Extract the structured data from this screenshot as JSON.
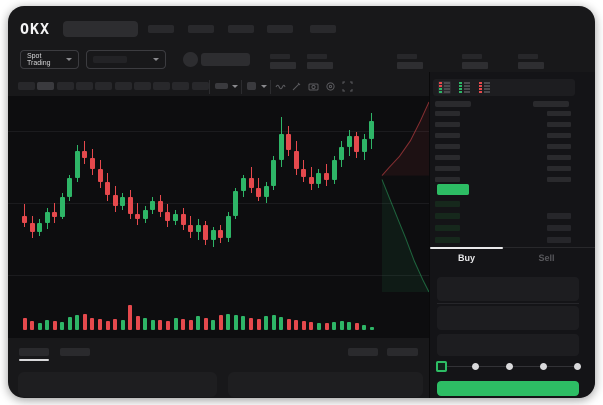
{
  "app": {
    "name_logo": "OKX"
  },
  "colors": {
    "green": "#2eb567",
    "red": "#e5494d",
    "bright_green": "#2dbd64",
    "bid_tint": "#16281c",
    "greek_bar": "#2a2a2d",
    "greek_bar_light": "#3a3a3e"
  },
  "header": {
    "nav_item_count": 5,
    "search_value": ""
  },
  "market_bar": {
    "market_selector_label": "Spot Trading",
    "stat_count": 5
  },
  "chart_toolbar": {
    "timeframe_count": 10,
    "active_timeframe_index": 1,
    "icons": [
      "wave-icon",
      "pencil-icon",
      "camera-icon",
      "gear-icon",
      "expand-icon"
    ]
  },
  "chart_data": {
    "type": "candlestick",
    "note": "UI is greeked: no axis labels, tick values or prices are visible; OHLC values are normalized 0-100 estimates read from candle pixel positions",
    "ylim": [
      0,
      100
    ],
    "grid": true,
    "candles": [
      [
        40,
        46,
        34,
        36
      ],
      [
        36,
        40,
        28,
        31
      ],
      [
        31,
        38,
        29,
        36
      ],
      [
        36,
        44,
        33,
        42
      ],
      [
        42,
        47,
        36,
        39
      ],
      [
        39,
        52,
        38,
        50
      ],
      [
        50,
        62,
        48,
        60
      ],
      [
        60,
        78,
        58,
        75
      ],
      [
        75,
        80,
        68,
        71
      ],
      [
        71,
        76,
        62,
        65
      ],
      [
        65,
        70,
        55,
        58
      ],
      [
        58,
        63,
        48,
        51
      ],
      [
        51,
        56,
        42,
        45
      ],
      [
        45,
        52,
        43,
        50
      ],
      [
        50,
        54,
        38,
        41
      ],
      [
        41,
        47,
        35,
        38
      ],
      [
        38,
        45,
        36,
        43
      ],
      [
        43,
        50,
        41,
        48
      ],
      [
        48,
        51,
        39,
        42
      ],
      [
        42,
        46,
        34,
        37
      ],
      [
        37,
        43,
        35,
        41
      ],
      [
        41,
        44,
        32,
        35
      ],
      [
        35,
        40,
        28,
        31
      ],
      [
        31,
        38,
        27,
        35
      ],
      [
        35,
        37,
        24,
        27
      ],
      [
        27,
        34,
        23,
        32
      ],
      [
        32,
        35,
        25,
        28
      ],
      [
        28,
        42,
        26,
        40
      ],
      [
        40,
        55,
        38,
        53
      ],
      [
        53,
        62,
        50,
        60
      ],
      [
        60,
        66,
        52,
        55
      ],
      [
        55,
        60,
        48,
        50
      ],
      [
        50,
        58,
        47,
        56
      ],
      [
        56,
        72,
        54,
        70
      ],
      [
        70,
        93,
        66,
        84
      ],
      [
        84,
        88,
        72,
        75
      ],
      [
        75,
        80,
        62,
        65
      ],
      [
        65,
        70,
        58,
        61
      ],
      [
        61,
        66,
        54,
        57
      ],
      [
        57,
        65,
        55,
        63
      ],
      [
        63,
        68,
        56,
        59
      ],
      [
        59,
        72,
        57,
        70
      ],
      [
        70,
        80,
        66,
        77
      ],
      [
        77,
        86,
        72,
        83
      ],
      [
        83,
        85,
        71,
        74
      ],
      [
        74,
        84,
        70,
        81
      ],
      [
        81,
        95,
        76,
        91
      ]
    ],
    "volume": [
      45,
      35,
      28,
      40,
      33,
      30,
      50,
      58,
      62,
      48,
      42,
      36,
      44,
      40,
      98,
      52,
      46,
      40,
      38,
      34,
      46,
      42,
      38,
      52,
      46,
      40,
      56,
      62,
      58,
      52,
      48,
      44,
      52,
      58,
      50,
      44,
      38,
      34,
      30,
      28,
      26,
      32,
      36,
      32,
      26,
      20,
      12
    ],
    "depth": {
      "asks_line": [
        [
          1,
          0.02
        ],
        [
          0.82,
          0.12
        ],
        [
          0.62,
          0.22
        ],
        [
          0.4,
          0.3
        ],
        [
          0.18,
          0.36
        ],
        [
          0.04,
          0.4
        ]
      ],
      "bids_line": [
        [
          0.04,
          0.42
        ],
        [
          0.2,
          0.52
        ],
        [
          0.36,
          0.62
        ],
        [
          0.52,
          0.72
        ],
        [
          0.7,
          0.84
        ],
        [
          0.88,
          0.94
        ],
        [
          1,
          1
        ]
      ]
    }
  },
  "orderbook": {
    "view_toggles": [
      "combined-book",
      "bids-only",
      "asks-only"
    ],
    "ask_row_count": 7,
    "bid_row_count": 4
  },
  "trade_panel": {
    "tabs": [
      {
        "label": "Buy"
      },
      {
        "label": "Sell"
      }
    ],
    "active_tab": "Buy",
    "slider_stop_count": 5,
    "slider_active_stop": 0
  },
  "bottom_bar": {
    "left_tab_count": 2,
    "active_left_tab": 0,
    "right_item_count": 2
  }
}
